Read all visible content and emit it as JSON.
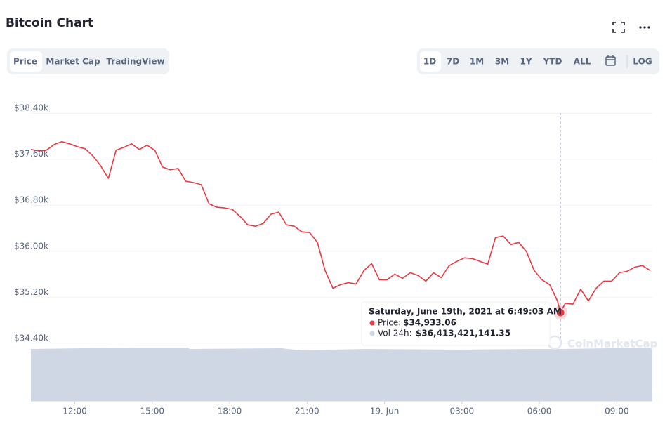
{
  "header": {
    "title": "Bitcoin Chart"
  },
  "tabs": [
    "Price",
    "Market Cap",
    "TradingView"
  ],
  "ranges": [
    "1D",
    "7D",
    "1M",
    "3M",
    "1Y",
    "YTD",
    "ALL"
  ],
  "log": "LOG",
  "chart_data": {
    "type": "line",
    "x": [
      10.3,
      10.6,
      10.9,
      11.2,
      11.5,
      11.8,
      12.1,
      12.4,
      12.7,
      13.0,
      13.3,
      13.6,
      13.9,
      14.2,
      14.5,
      14.8,
      15.1,
      15.4,
      15.7,
      16.0,
      16.3,
      16.6,
      16.9,
      17.2,
      17.5,
      17.8,
      18.1,
      18.4,
      18.7,
      19.0,
      19.3,
      19.6,
      19.9,
      20.2,
      20.5,
      20.8,
      21.1,
      21.4,
      21.7,
      22.0,
      22.3,
      22.6,
      22.9,
      23.2,
      23.5,
      23.8,
      24.1,
      24.4,
      24.7,
      25.0,
      25.3,
      25.6,
      25.9,
      26.2,
      26.5,
      26.8,
      27.1,
      27.4,
      27.7,
      28.0,
      28.3,
      28.6,
      28.9,
      29.2,
      29.5,
      29.8,
      30.1,
      30.4,
      30.7,
      30.8175,
      31.0,
      31.3,
      31.6,
      31.9,
      32.2,
      32.5,
      32.8,
      33.1,
      33.4,
      33.7,
      34.0,
      34.3
    ],
    "series": [
      {
        "name": "Price",
        "color": "#ea3943",
        "values": [
          37770,
          37745,
          37757,
          37855,
          37904,
          37868,
          37818,
          37782,
          37659,
          37488,
          37267,
          37757,
          37806,
          37868,
          37770,
          37843,
          37757,
          37463,
          37414,
          37439,
          37218,
          37194,
          37157,
          36826,
          36765,
          36753,
          36728,
          36606,
          36459,
          36434,
          36483,
          36643,
          36679,
          36459,
          36434,
          36336,
          36324,
          36153,
          35663,
          35356,
          35418,
          35454,
          35430,
          35663,
          35785,
          35504,
          35504,
          35601,
          35528,
          35626,
          35577,
          35479,
          35626,
          35540,
          35748,
          35822,
          35883,
          35871,
          35822,
          35773,
          36238,
          36263,
          36116,
          36153,
          35993,
          35663,
          35504,
          35418,
          35136,
          34933.06,
          35094,
          35080,
          35338,
          35136,
          35356,
          35479,
          35479,
          35626,
          35650,
          35724,
          35748,
          35663
        ]
      }
    ],
    "xlim": [
      10.3,
      34.35
    ],
    "xticks": [
      {
        "value": 12,
        "label": "12:00"
      },
      {
        "value": 15,
        "label": "15:00"
      },
      {
        "value": 18,
        "label": "18:00"
      },
      {
        "value": 21,
        "label": "21:00"
      },
      {
        "value": 24,
        "label": "19. Jun"
      },
      {
        "value": 27,
        "label": "03:00"
      },
      {
        "value": 30,
        "label": "06:00"
      },
      {
        "value": 33,
        "label": "09:00"
      }
    ],
    "ylim": [
      34300,
      38500
    ],
    "yticks": [
      {
        "value": 34400,
        "label": "$34.40k"
      },
      {
        "value": 35200,
        "label": "$35.20k"
      },
      {
        "value": 36000,
        "label": "$36.00k"
      },
      {
        "value": 36800,
        "label": "$36.80k"
      },
      {
        "value": 37600,
        "label": "$37.60k"
      },
      {
        "value": 38400,
        "label": "$38.40k"
      }
    ],
    "grid": true,
    "tooltip": {
      "title": "Saturday, June 19th, 2021 at 6:49:03 AM",
      "price_label": "Price:",
      "price": "$34,933.06",
      "volume_label": "Vol 24h:",
      "volume": "$36,413,421,141.35"
    },
    "watermark": "CoinMarketCap"
  }
}
